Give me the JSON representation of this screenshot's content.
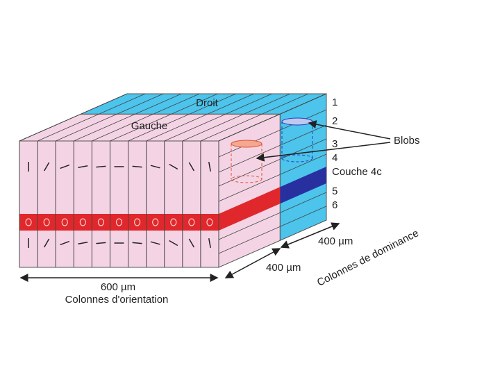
{
  "faces": {
    "top_right": "Droit",
    "top_left": "Gauche"
  },
  "layers": [
    "1",
    "2",
    "3",
    "4",
    "Couche 4c",
    "5",
    "6"
  ],
  "blobs": "Blobs",
  "dimensions": {
    "front_width": "600 µm",
    "depth": "400 µm",
    "right_width": "400 µm"
  },
  "captions": {
    "orientation": "Colonnes d'orientation",
    "dominance": "Colonnes de dominance"
  }
}
